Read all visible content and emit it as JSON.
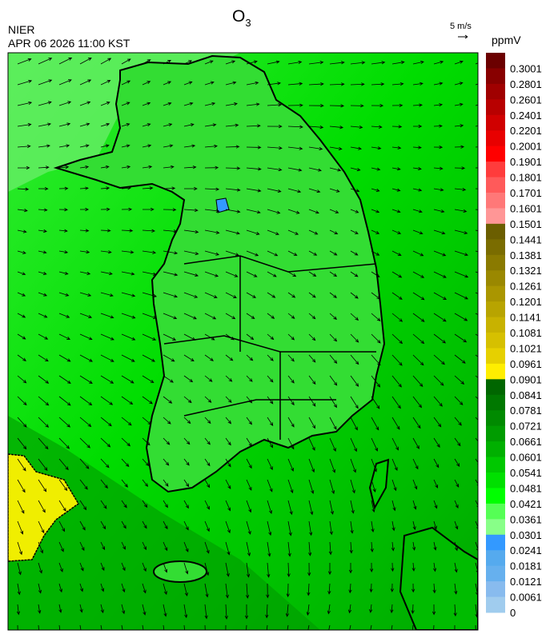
{
  "header": {
    "title": "O",
    "title_subscript": "3",
    "agency": "NIER",
    "timestamp": "APR 06 2026 11:00 KST"
  },
  "wind_scale": {
    "label": "5 m/s"
  },
  "colorbar": {
    "unit": "ppmV",
    "labels": [
      "0.3001",
      "0.2801",
      "0.2601",
      "0.2401",
      "0.2201",
      "0.2001",
      "0.1901",
      "0.1801",
      "0.1701",
      "0.1601",
      "0.1501",
      "0.1441",
      "0.1381",
      "0.1321",
      "0.1261",
      "0.1201",
      "0.1141",
      "0.1081",
      "0.1021",
      "0.0961",
      "0.0901",
      "0.0841",
      "0.0781",
      "0.0721",
      "0.0661",
      "0.0601",
      "0.0541",
      "0.0481",
      "0.0421",
      "0.0361",
      "0.0301",
      "0.0241",
      "0.0181",
      "0.0121",
      "0.0061",
      "0"
    ],
    "colors": [
      "#6b0000",
      "#880000",
      "#a00000",
      "#b80000",
      "#d00000",
      "#e80000",
      "#ff0000",
      "#ff3c3c",
      "#ff5a5a",
      "#ff7878",
      "#ff9696",
      "#6b5e00",
      "#7a6c00",
      "#8a7a00",
      "#9a8800",
      "#aa9600",
      "#b8a400",
      "#c8b200",
      "#d6c000",
      "#e6d000",
      "#ffee00",
      "#006600",
      "#007800",
      "#008a00",
      "#009c00",
      "#00b000",
      "#00c800",
      "#00e000",
      "#00ff00",
      "#55ff55",
      "#88ff88",
      "#3399ff",
      "#55aaee",
      "#66b0ee",
      "#88bbee",
      "#a0ccee"
    ]
  }
}
